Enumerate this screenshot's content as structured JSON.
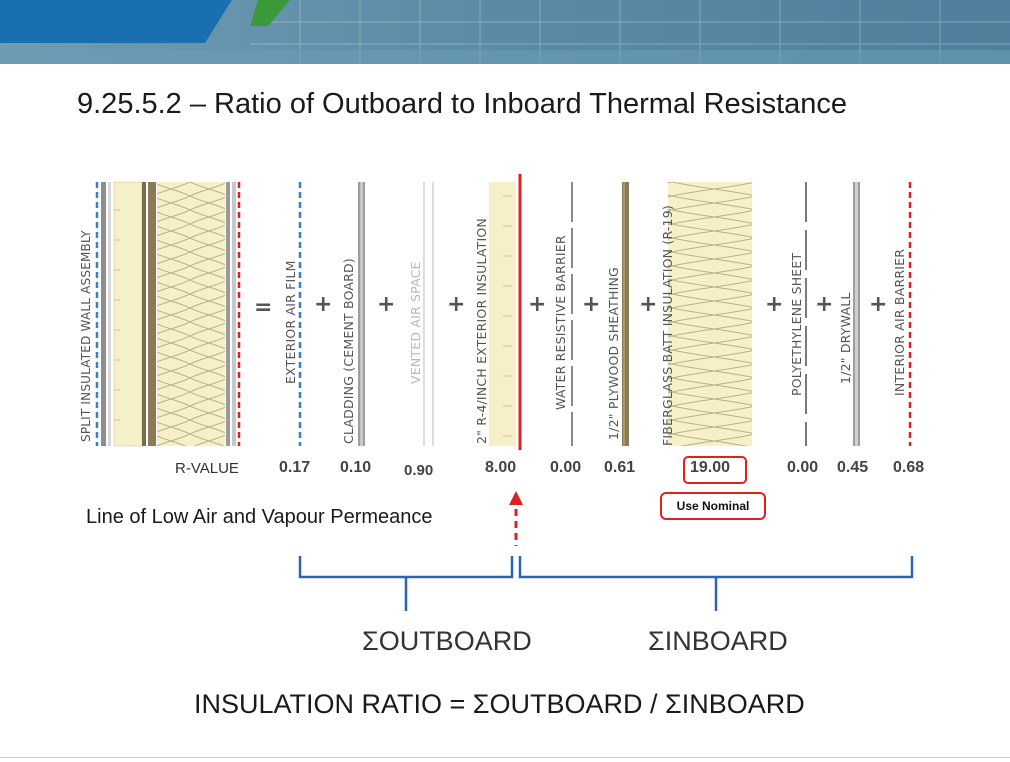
{
  "title": "9.25.5.2 – Ratio of Outboard to Inboard Thermal Resistance",
  "assembly_label": "SPLIT INSULATED  WALL ASSEMBLY",
  "equals": "=",
  "plus": "+",
  "layers": [
    {
      "name": "EXTERIOR AIR FILM",
      "r_value": "0.17"
    },
    {
      "name": "CLADDING (CEMENT BOARD)",
      "r_value": "0.10"
    },
    {
      "name": "VENTED AIR SPACE",
      "r_value": "0.90"
    },
    {
      "name": "2\" R-4/INCH EXTERIOR INSULATION",
      "r_value": "8.00"
    },
    {
      "name": "WATER RESISTIVE BARRIER",
      "r_value": "0.00"
    },
    {
      "name": "1/2\" PLYWOOD SHEATHING",
      "r_value": "0.61"
    },
    {
      "name": "FIBERGLASS BATT INSULATION (R-19)",
      "r_value": "19.00"
    },
    {
      "name": "POLYETHYLENE SHEET",
      "r_value": "0.00"
    },
    {
      "name": "1/2\" DRYWALL",
      "r_value": "0.45"
    },
    {
      "name": "INTERIOR AIR BARRIER",
      "r_value": "0.68"
    }
  ],
  "r_value_label": "R-VALUE",
  "use_nominal": "Use Nominal",
  "permeance_line_label": "Line of Low Air and Vapour Permeance",
  "sum_outboard": "ΣOUTBOARD",
  "sum_inboard": "ΣINBOARD",
  "ratio_formula": "INSULATION RATIO = ΣOUTBOARD / ΣINBOARD",
  "colors": {
    "banner_blue": "#1a6fb0",
    "banner_green": "#3a9a3a",
    "bracket_blue": "#2e63b0",
    "highlight_red": "#e02020",
    "insulation_fill": "#f6f0c8",
    "air_film_blue": "#3a7fc8"
  }
}
